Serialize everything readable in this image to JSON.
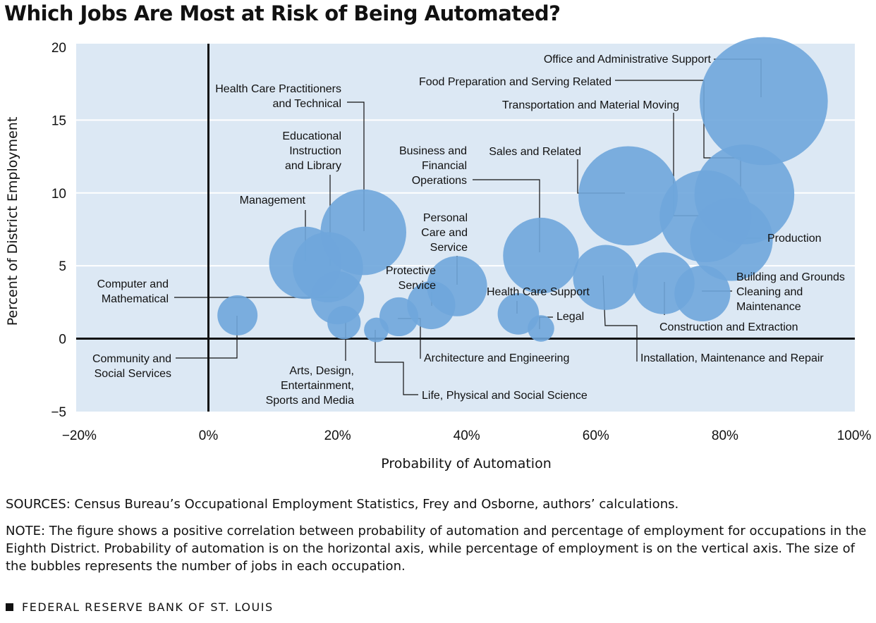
{
  "title": "Which Jobs Are Most at Risk of Being Automated?",
  "colors": {
    "plot_bg": "#dce8f4",
    "bubble": "#6fa6dc",
    "gridline": "#ffffff",
    "axis_line": "#111111"
  },
  "chart_data": {
    "type": "scatter",
    "xlabel": "Probability of Automation",
    "ylabel": "Percent of District Employment",
    "xlim": [
      -20,
      100
    ],
    "ylim": [
      -5,
      20
    ],
    "x_ticks": [
      "−20%",
      "0%",
      "20%",
      "40%",
      "60%",
      "80%",
      "100%"
    ],
    "y_ticks": [
      "20",
      "15",
      "10",
      "5",
      "0",
      "−5"
    ],
    "grid": true,
    "bubble_size_meaning": "number of jobs in each occupation",
    "points": [
      {
        "name": "Office and Administrative Support",
        "x": 86,
        "y": 16.3,
        "size": 16.3
      },
      {
        "name": "Food Preparation and Serving Related",
        "x": 83,
        "y": 9.9,
        "size": 9.9
      },
      {
        "name": "Transportation and Material Moving",
        "x": 77,
        "y": 8.4,
        "size": 8.4
      },
      {
        "name": "Sales and Related",
        "x": 65,
        "y": 9.8,
        "size": 9.8
      },
      {
        "name": "Production",
        "x": 81,
        "y": 6.8,
        "size": 6.8
      },
      {
        "name": "Health Care Practitioners and Technical",
        "x": 24,
        "y": 7.3,
        "size": 7.3
      },
      {
        "name": "Business and Financial Operations",
        "x": 51.5,
        "y": 5.7,
        "size": 5.7
      },
      {
        "name": "Educational Instruction and Library",
        "x": 18.5,
        "y": 4.9,
        "size": 4.9
      },
      {
        "name": "Management",
        "x": 15,
        "y": 5.2,
        "size": 5.2
      },
      {
        "name": "Installation, Maintenance and Repair",
        "x": 61.5,
        "y": 4.2,
        "size": 4.2
      },
      {
        "name": "Construction and Extraction",
        "x": 70.5,
        "y": 3.8,
        "size": 3.8
      },
      {
        "name": "Personal Care and Service",
        "x": 38.5,
        "y": 3.6,
        "size": 3.6
      },
      {
        "name": "Building and Grounds Cleaning and Maintenance",
        "x": 76.5,
        "y": 3.1,
        "size": 3.1
      },
      {
        "name": "Computer and Mathematical",
        "x": 20,
        "y": 2.8,
        "size": 2.8
      },
      {
        "name": "Protective Service",
        "x": 34.5,
        "y": 2.3,
        "size": 2.3
      },
      {
        "name": "Health Care Support",
        "x": 48,
        "y": 1.7,
        "size": 1.7
      },
      {
        "name": "Community and Social Services",
        "x": 4.5,
        "y": 1.6,
        "size": 1.6
      },
      {
        "name": "Architecture and Engineering",
        "x": 29.5,
        "y": 1.5,
        "size": 1.5
      },
      {
        "name": "Arts, Design, Entertainment, Sports and Media",
        "x": 21,
        "y": 1.1,
        "size": 1.1
      },
      {
        "name": "Life, Physical and Social Science",
        "x": 26,
        "y": 0.6,
        "size": 0.6
      },
      {
        "name": "Legal",
        "x": 51.5,
        "y": 0.7,
        "size": 0.7
      }
    ]
  },
  "labels": [
    {
      "lines": [
        "Office and Administrative Support"
      ]
    },
    {
      "lines": [
        "Food Preparation and Serving Related"
      ]
    },
    {
      "lines": [
        "Transportation and Material Moving"
      ]
    },
    {
      "lines": [
        "Sales and Related"
      ]
    },
    {
      "lines": [
        "Production"
      ]
    },
    {
      "lines": [
        "Health Care Practitioners",
        "and Technical"
      ]
    },
    {
      "lines": [
        "Business and",
        "Financial",
        "Operations"
      ]
    },
    {
      "lines": [
        "Educational",
        "Instruction",
        "and Library"
      ]
    },
    {
      "lines": [
        "Management"
      ]
    },
    {
      "lines": [
        "Installation, Maintenance and Repair"
      ]
    },
    {
      "lines": [
        "Construction and Extraction"
      ]
    },
    {
      "lines": [
        "Personal",
        "Care and",
        "Service"
      ]
    },
    {
      "lines": [
        "Building and Grounds",
        "Cleaning and",
        "Maintenance"
      ]
    },
    {
      "lines": [
        "Computer and",
        "Mathematical"
      ]
    },
    {
      "lines": [
        "Protective",
        "Service"
      ]
    },
    {
      "lines": [
        "Health Care Support"
      ]
    },
    {
      "lines": [
        "Community and",
        "Social Services"
      ]
    },
    {
      "lines": [
        "Architecture and Engineering"
      ]
    },
    {
      "lines": [
        "Arts, Design,",
        "Entertainment,",
        "Sports and Media"
      ]
    },
    {
      "lines": [
        "Life, Physical and Social Science"
      ]
    },
    {
      "lines": [
        "Legal"
      ]
    }
  ],
  "footer": {
    "sources": "SOURCES: Census Bureau’s Occupational Employment Statistics, Frey and Osborne, authors’ calculations.",
    "note": "NOTE: The figure shows a positive correlation between probability of automation and percentage of employment for occupations in the Eighth District. Probability of automation is on the horizontal axis, while percentage of employment is on the vertical axis. The size of the bubbles represents the number of jobs in each occupation.",
    "org": "FEDERAL RESERVE BANK OF ST. LOUIS"
  }
}
